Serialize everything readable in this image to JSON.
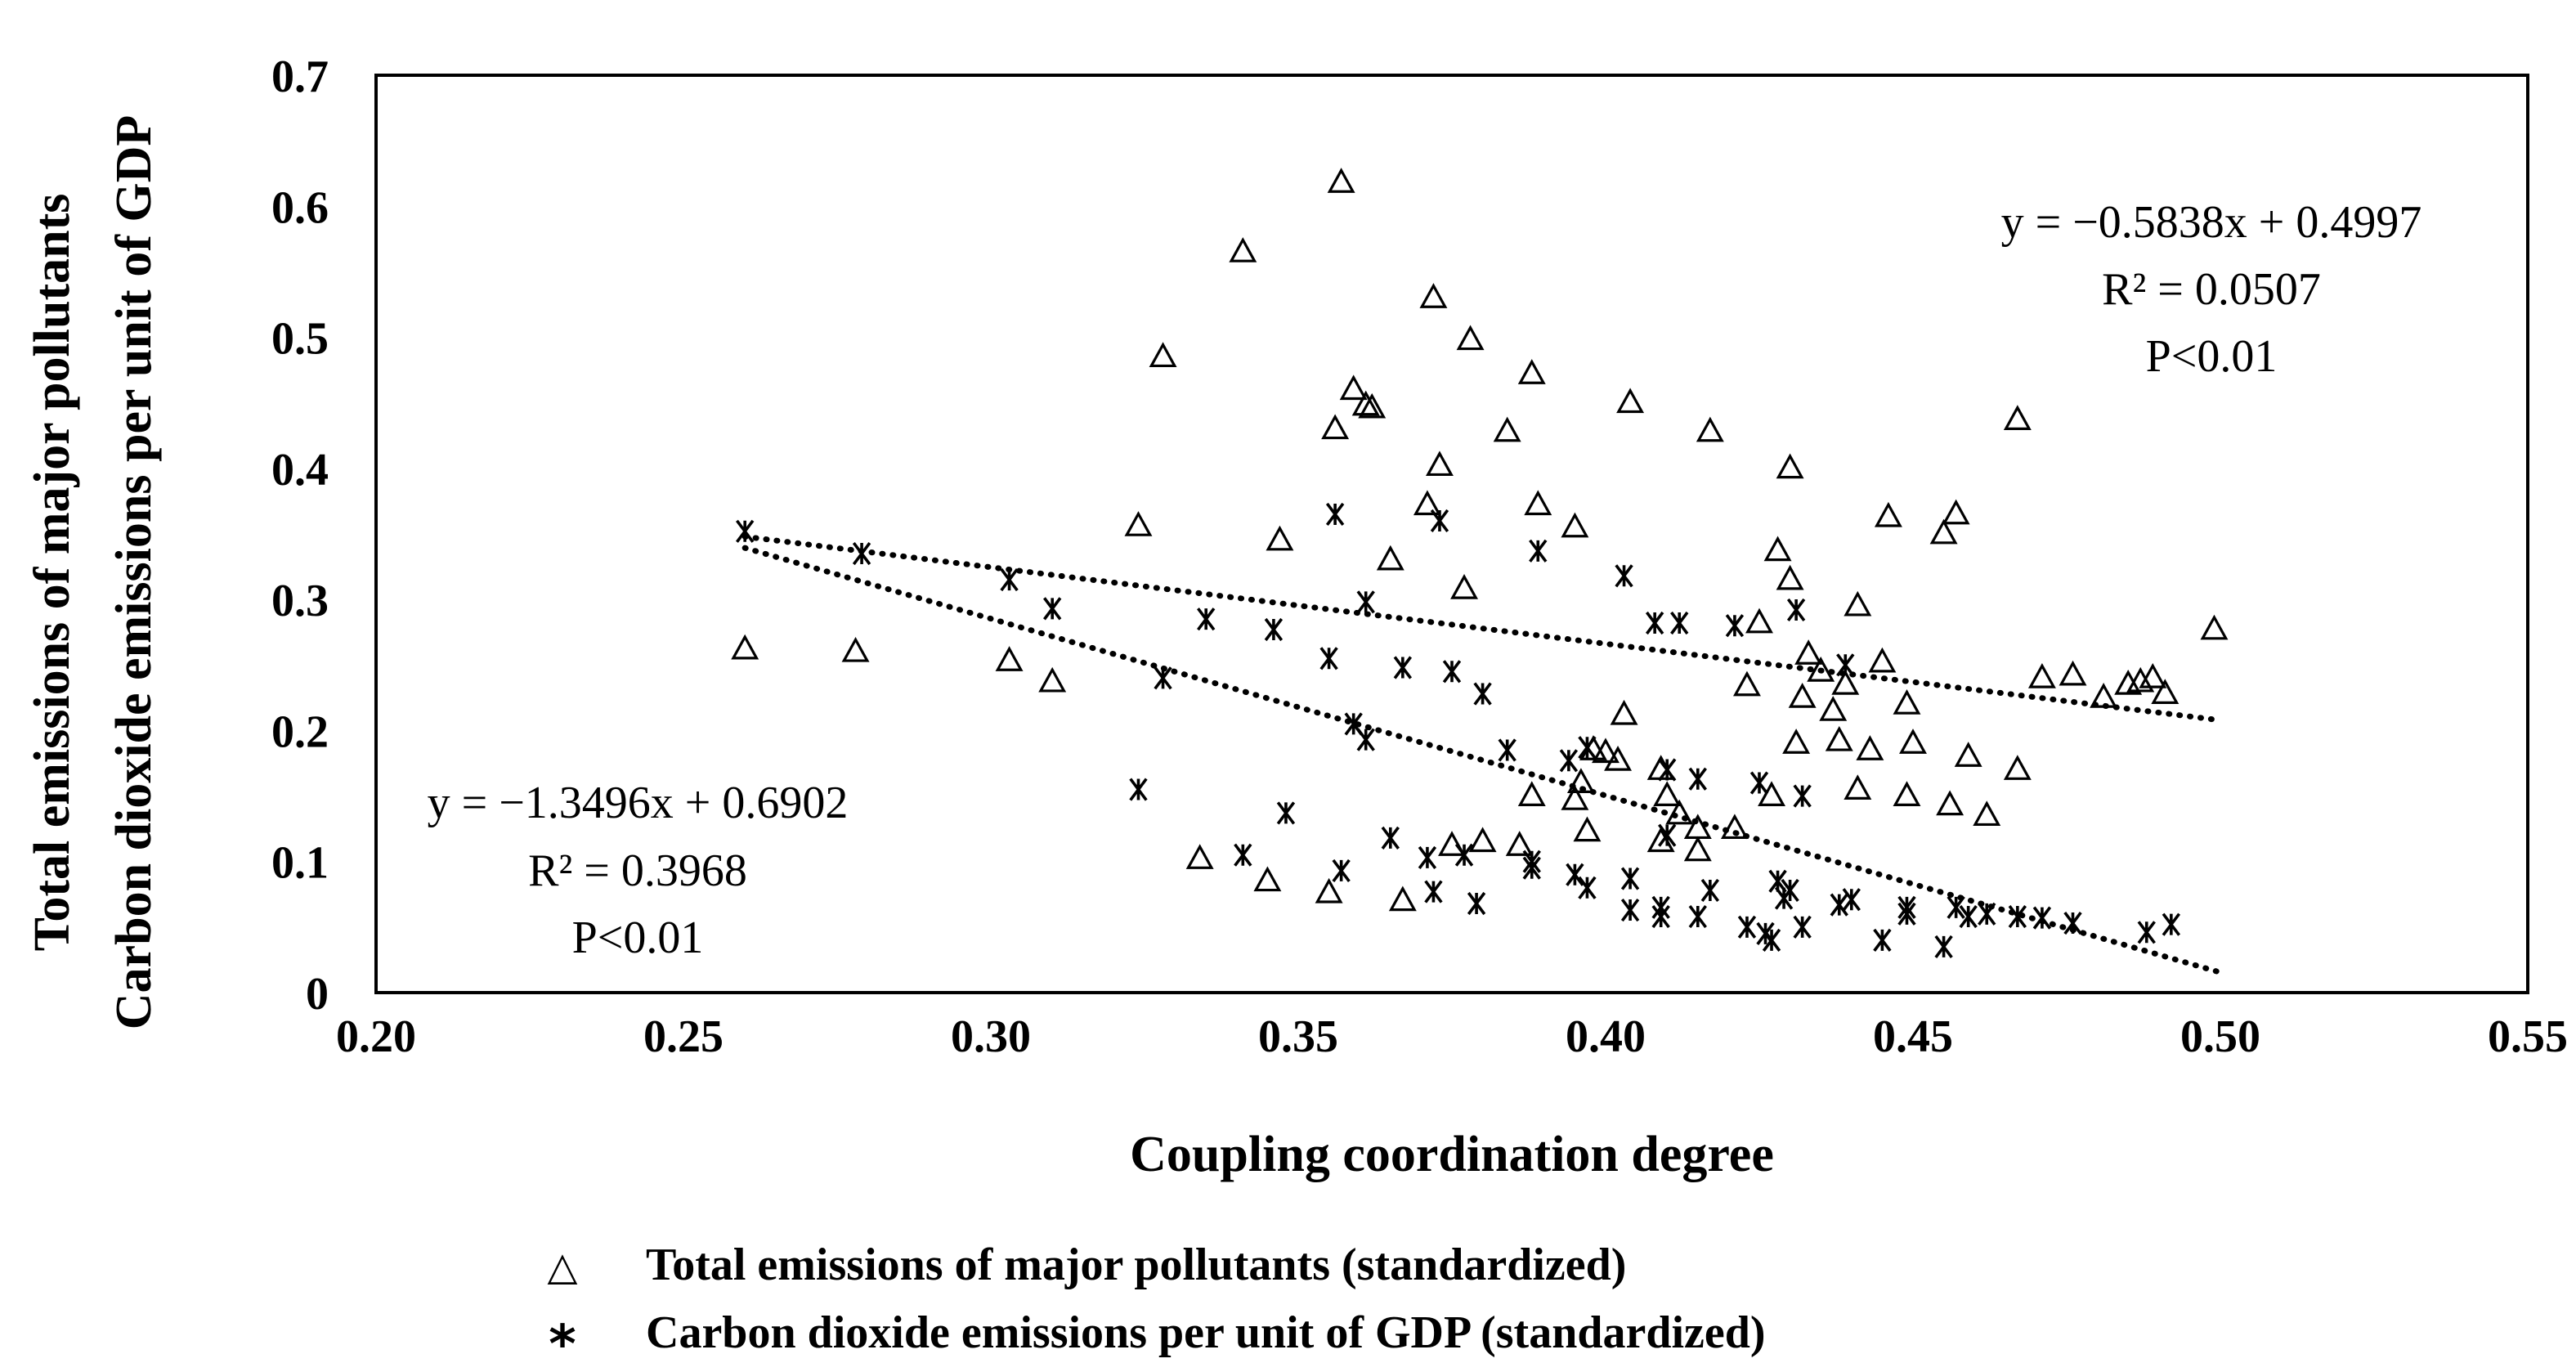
{
  "chart_data": {
    "type": "scatter",
    "title": "",
    "xlabel": "Coupling coordination degree",
    "ylabel_lines": [
      "Total emissions of major pollutants",
      "Carbon dioxide emissions per unit of GDP"
    ],
    "xlim": [
      0.2,
      0.55
    ],
    "ylim": [
      0,
      0.7
    ],
    "xticks": [
      "0.20",
      "0.25",
      "0.30",
      "0.35",
      "0.40",
      "0.45",
      "0.50",
      "0.55"
    ],
    "yticks": [
      "0",
      "0.1",
      "0.2",
      "0.3",
      "0.4",
      "0.5",
      "0.6",
      "0.7"
    ],
    "grid": false,
    "legend_position": "bottom",
    "series": [
      {
        "name": "Total emissions of major pollutants (standardized)",
        "marker": "triangle",
        "points": [
          [
            0.26,
            0.262
          ],
          [
            0.278,
            0.26
          ],
          [
            0.303,
            0.253
          ],
          [
            0.31,
            0.237
          ],
          [
            0.324,
            0.356
          ],
          [
            0.328,
            0.485
          ],
          [
            0.334,
            0.102
          ],
          [
            0.341,
            0.565
          ],
          [
            0.345,
            0.085
          ],
          [
            0.347,
            0.345
          ],
          [
            0.355,
            0.076
          ],
          [
            0.356,
            0.43
          ],
          [
            0.357,
            0.618
          ],
          [
            0.359,
            0.46
          ],
          [
            0.361,
            0.448
          ],
          [
            0.362,
            0.446
          ],
          [
            0.365,
            0.33
          ],
          [
            0.367,
            0.07
          ],
          [
            0.371,
            0.372
          ],
          [
            0.372,
            0.53
          ],
          [
            0.373,
            0.402
          ],
          [
            0.375,
            0.112
          ],
          [
            0.377,
            0.308
          ],
          [
            0.378,
            0.498
          ],
          [
            0.38,
            0.115
          ],
          [
            0.384,
            0.428
          ],
          [
            0.386,
            0.112
          ],
          [
            0.388,
            0.472
          ],
          [
            0.388,
            0.15
          ],
          [
            0.389,
            0.372
          ],
          [
            0.395,
            0.355
          ],
          [
            0.395,
            0.147
          ],
          [
            0.396,
            0.16
          ],
          [
            0.397,
            0.123
          ],
          [
            0.398,
            0.185
          ],
          [
            0.4,
            0.183
          ],
          [
            0.402,
            0.177
          ],
          [
            0.403,
            0.212
          ],
          [
            0.404,
            0.45
          ],
          [
            0.409,
            0.115
          ],
          [
            0.409,
            0.17
          ],
          [
            0.41,
            0.15
          ],
          [
            0.412,
            0.136
          ],
          [
            0.415,
            0.125
          ],
          [
            0.415,
            0.108
          ],
          [
            0.417,
            0.428
          ],
          [
            0.421,
            0.125
          ],
          [
            0.423,
            0.234
          ],
          [
            0.425,
            0.282
          ],
          [
            0.427,
            0.15
          ],
          [
            0.428,
            0.337
          ],
          [
            0.43,
            0.4
          ],
          [
            0.43,
            0.315
          ],
          [
            0.431,
            0.19
          ],
          [
            0.432,
            0.225
          ],
          [
            0.433,
            0.258
          ],
          [
            0.435,
            0.245
          ],
          [
            0.437,
            0.215
          ],
          [
            0.438,
            0.192
          ],
          [
            0.439,
            0.235
          ],
          [
            0.441,
            0.155
          ],
          [
            0.441,
            0.295
          ],
          [
            0.443,
            0.185
          ],
          [
            0.445,
            0.252
          ],
          [
            0.446,
            0.363
          ],
          [
            0.449,
            0.15
          ],
          [
            0.449,
            0.22
          ],
          [
            0.45,
            0.19
          ],
          [
            0.455,
            0.35
          ],
          [
            0.456,
            0.143
          ],
          [
            0.457,
            0.365
          ],
          [
            0.459,
            0.18
          ],
          [
            0.462,
            0.135
          ],
          [
            0.467,
            0.437
          ],
          [
            0.467,
            0.17
          ],
          [
            0.471,
            0.24
          ],
          [
            0.476,
            0.242
          ],
          [
            0.481,
            0.225
          ],
          [
            0.485,
            0.235
          ],
          [
            0.487,
            0.237
          ],
          [
            0.489,
            0.24
          ],
          [
            0.491,
            0.228
          ],
          [
            0.499,
            0.277
          ]
        ]
      },
      {
        "name": "Carbon dioxide emissions per unit of GDP (standardized)",
        "marker": "asterisk",
        "points": [
          [
            0.26,
            0.352
          ],
          [
            0.279,
            0.335
          ],
          [
            0.303,
            0.315
          ],
          [
            0.31,
            0.293
          ],
          [
            0.324,
            0.155
          ],
          [
            0.328,
            0.24
          ],
          [
            0.335,
            0.285
          ],
          [
            0.341,
            0.105
          ],
          [
            0.346,
            0.277
          ],
          [
            0.348,
            0.137
          ],
          [
            0.355,
            0.255
          ],
          [
            0.356,
            0.365
          ],
          [
            0.357,
            0.093
          ],
          [
            0.359,
            0.205
          ],
          [
            0.361,
            0.298
          ],
          [
            0.361,
            0.193
          ],
          [
            0.365,
            0.118
          ],
          [
            0.367,
            0.248
          ],
          [
            0.371,
            0.103
          ],
          [
            0.372,
            0.077
          ],
          [
            0.373,
            0.36
          ],
          [
            0.375,
            0.245
          ],
          [
            0.377,
            0.105
          ],
          [
            0.379,
            0.068
          ],
          [
            0.38,
            0.228
          ],
          [
            0.384,
            0.185
          ],
          [
            0.388,
            0.095
          ],
          [
            0.388,
            0.1
          ],
          [
            0.389,
            0.337
          ],
          [
            0.394,
            0.177
          ],
          [
            0.395,
            0.09
          ],
          [
            0.397,
            0.187
          ],
          [
            0.397,
            0.08
          ],
          [
            0.403,
            0.318
          ],
          [
            0.404,
            0.063
          ],
          [
            0.404,
            0.087
          ],
          [
            0.408,
            0.282
          ],
          [
            0.409,
            0.058
          ],
          [
            0.409,
            0.065
          ],
          [
            0.41,
            0.17
          ],
          [
            0.41,
            0.12
          ],
          [
            0.412,
            0.282
          ],
          [
            0.415,
            0.058
          ],
          [
            0.415,
            0.163
          ],
          [
            0.417,
            0.078
          ],
          [
            0.421,
            0.28
          ],
          [
            0.423,
            0.05
          ],
          [
            0.425,
            0.16
          ],
          [
            0.426,
            0.045
          ],
          [
            0.427,
            0.04
          ],
          [
            0.428,
            0.085
          ],
          [
            0.429,
            0.072
          ],
          [
            0.43,
            0.078
          ],
          [
            0.431,
            0.292
          ],
          [
            0.432,
            0.05
          ],
          [
            0.432,
            0.15
          ],
          [
            0.438,
            0.067
          ],
          [
            0.439,
            0.25
          ],
          [
            0.44,
            0.071
          ],
          [
            0.445,
            0.04
          ],
          [
            0.449,
            0.065
          ],
          [
            0.449,
            0.06
          ],
          [
            0.455,
            0.035
          ],
          [
            0.457,
            0.065
          ],
          [
            0.459,
            0.058
          ],
          [
            0.462,
            0.06
          ],
          [
            0.467,
            0.058
          ],
          [
            0.471,
            0.057
          ],
          [
            0.476,
            0.053
          ],
          [
            0.488,
            0.046
          ],
          [
            0.492,
            0.052
          ]
        ]
      }
    ],
    "trendlines": [
      {
        "series": "Total emissions of major pollutants (standardized)",
        "slope": -0.5838,
        "intercept": 0.4997,
        "x_range": [
          0.26,
          0.5
        ],
        "equation": "y = −0.5838x + 0.4997",
        "r2": "R² = 0.0507",
        "p": "P<0.01",
        "label_position": "top-right"
      },
      {
        "series": "Carbon dioxide emissions per unit of GDP (standardized)",
        "slope": -1.3496,
        "intercept": 0.6902,
        "x_range": [
          0.26,
          0.5
        ],
        "equation": "y = −1.3496x + 0.6902",
        "r2": "R² = 0.3968",
        "p": "P<0.01",
        "label_position": "left"
      }
    ],
    "legend": [
      {
        "symbol": "△",
        "label": "Total emissions of major pollutants (standardized)"
      },
      {
        "symbol": "⁎",
        "label": "Carbon dioxide emissions per unit of GDP (standardized)"
      }
    ]
  }
}
